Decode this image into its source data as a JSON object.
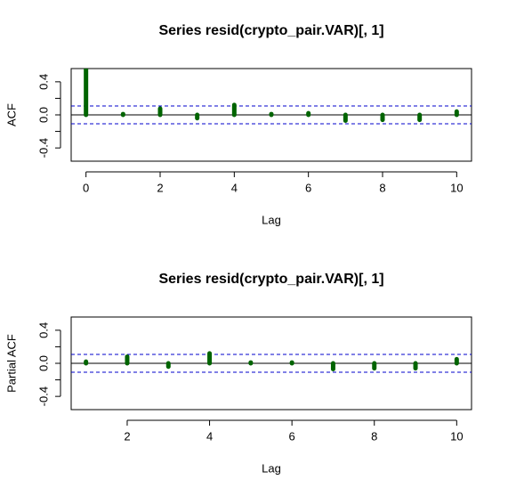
{
  "chart_data": [
    {
      "type": "acf",
      "title": "Series  resid(crypto_pair.VAR)[, 1]",
      "xlabel": "Lag",
      "ylabel": "ACF",
      "x": [
        0,
        1,
        2,
        3,
        4,
        5,
        6,
        7,
        8,
        9,
        10
      ],
      "values": [
        1,
        0.01,
        0.075,
        -0.04,
        0.12,
        0.01,
        0.02,
        -0.07,
        -0.06,
        -0.06,
        0.04
      ],
      "color": "#006400",
      "ci": 0.108,
      "ci_color": "#0000cc",
      "xlim": [
        -0.4,
        10.4
      ],
      "ylim": [
        -0.56,
        0.56
      ],
      "xticks": [
        0,
        2,
        4,
        6,
        8,
        10
      ],
      "yticks": [
        -0.4,
        0.0,
        0.4
      ],
      "yminor": [
        -0.2,
        0.2
      ]
    },
    {
      "type": "acf",
      "title": "Series  resid(crypto_pair.VAR)[, 1]",
      "xlabel": "Lag",
      "ylabel": "Partial ACF",
      "x": [
        1,
        2,
        3,
        4,
        5,
        6,
        7,
        8,
        9,
        10
      ],
      "values": [
        0.02,
        0.08,
        -0.04,
        0.12,
        0.01,
        0.01,
        -0.07,
        -0.06,
        -0.06,
        0.05
      ],
      "color": "#006400",
      "ci": 0.108,
      "ci_color": "#0000cc",
      "xlim": [
        0.64,
        10.36
      ],
      "ylim": [
        -0.56,
        0.56
      ],
      "xticks": [
        2,
        4,
        6,
        8,
        10
      ],
      "yticks": [
        -0.4,
        0.0,
        0.4
      ],
      "yminor": [
        -0.2,
        0.2
      ]
    }
  ]
}
